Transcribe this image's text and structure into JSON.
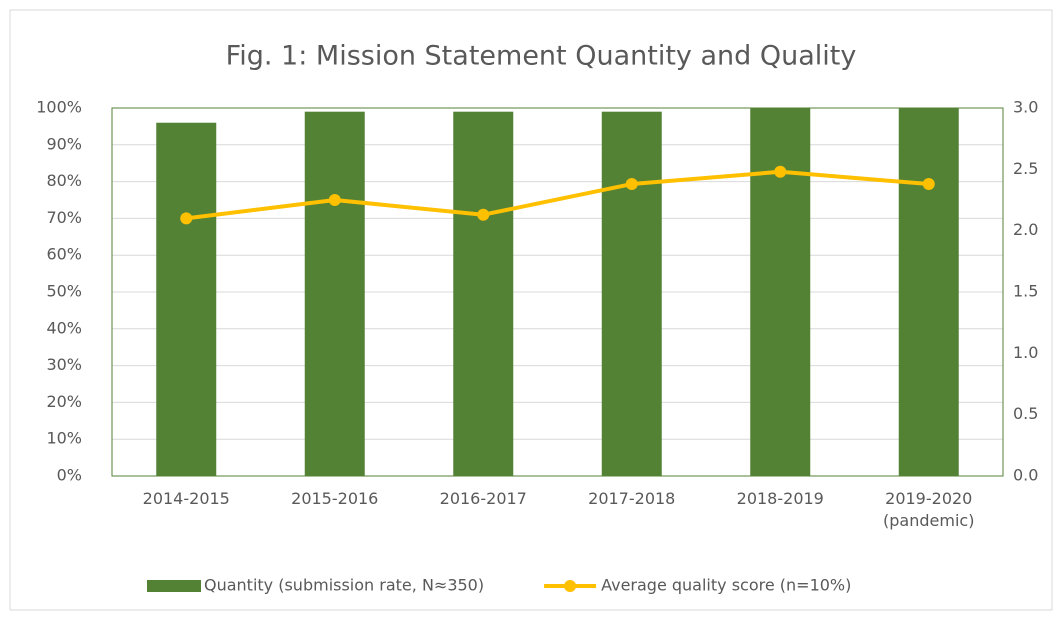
{
  "chart_data": {
    "type": "bar",
    "title": "Fig. 1: Mission Statement Quantity and Quality",
    "categories": [
      "2014-2015",
      "2015-2016",
      "2016-2017",
      "2017-2018",
      "2018-2019",
      "2019-2020 (pandemic)"
    ],
    "series": [
      {
        "name": "Quantity (submission rate, N≈350)",
        "type": "bar",
        "color": "#548235",
        "values": [
          96,
          99,
          99,
          99,
          100,
          100
        ]
      },
      {
        "name": "Average quality score (n=10%)",
        "type": "line",
        "axis": "y2",
        "color": "#ffc000",
        "values": [
          2.1,
          2.25,
          2.13,
          2.38,
          2.48,
          2.38
        ]
      }
    ],
    "ylim": [
      0,
      100
    ],
    "yticks": [
      {
        "value": 0,
        "label": "0%"
      },
      {
        "value": 10,
        "label": "10%"
      },
      {
        "value": 20,
        "label": "20%"
      },
      {
        "value": 30,
        "label": "30%"
      },
      {
        "value": 40,
        "label": "40%"
      },
      {
        "value": 50,
        "label": "50%"
      },
      {
        "value": 60,
        "label": "60%"
      },
      {
        "value": 70,
        "label": "70%"
      },
      {
        "value": 80,
        "label": "80%"
      },
      {
        "value": 90,
        "label": "90%"
      },
      {
        "value": 100,
        "label": "100%"
      }
    ],
    "y2lim": [
      0,
      3
    ],
    "y2ticks": [
      {
        "value": 0,
        "label": "0.0"
      },
      {
        "value": 0.5,
        "label": "0.5"
      },
      {
        "value": 1,
        "label": "1.0"
      },
      {
        "value": 1.5,
        "label": "1.5"
      },
      {
        "value": 2,
        "label": "2.0"
      },
      {
        "value": 2.5,
        "label": "2.5"
      },
      {
        "value": 3,
        "label": "3.0"
      }
    ],
    "grid": true,
    "legend": "bottom"
  }
}
